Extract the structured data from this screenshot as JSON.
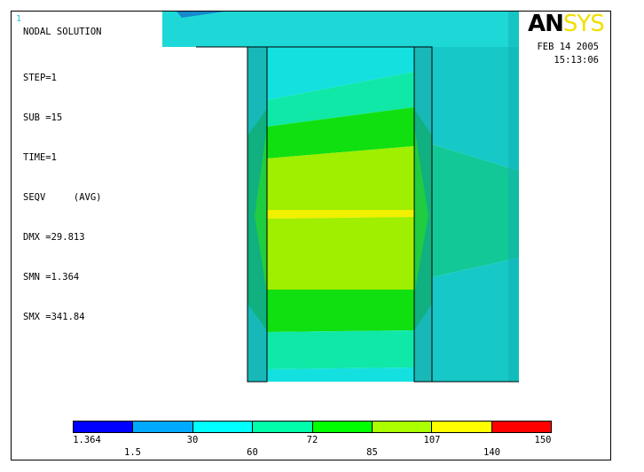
{
  "window": {
    "number": "1"
  },
  "title": "NODAL SOLUTION",
  "info": [
    "STEP=1",
    "SUB =15",
    "TIME=1",
    "SEQV     (AVG)",
    "DMX =29.813",
    "SMN =1.364",
    "SMX =341.84"
  ],
  "logo": {
    "an": "AN",
    "sys": "SYS"
  },
  "date": "FEB 14 2005",
  "time": "15:13:06",
  "legend": {
    "colors": [
      "#0000ff",
      "#00aaff",
      "#00ffff",
      "#00ffaa",
      "#00ff00",
      "#aaff00",
      "#ffff00",
      "#ff0000"
    ],
    "labels_top": [
      "1.364",
      "30",
      "72",
      "107",
      "150"
    ],
    "labels_bottom": [
      "1.5",
      "60",
      "85",
      "140"
    ]
  }
}
